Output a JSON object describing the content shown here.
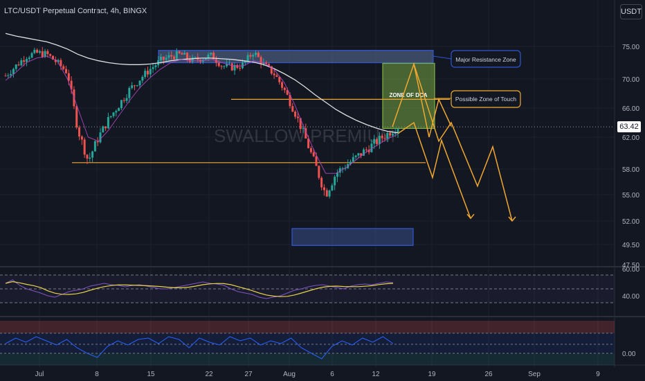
{
  "header": {
    "title": "LTC/USDT Perpetual Contract, 4h, BINGX",
    "unit": "USDT",
    "last_price": "63.42"
  },
  "watermark": "SWALLOW PREMIUM",
  "colors": {
    "background": "#131722",
    "up": "#26a69a",
    "down": "#ef5350",
    "accent": "#f0a830",
    "zone_border": "#3056d3",
    "zone_fill": "#4a5a7a",
    "dca_fill": "#8bc34a",
    "rsi_line": "#7e57c2",
    "rsi_ma": "#e8d44d",
    "osc_line": "#2962ff"
  },
  "annotations": {
    "major_resistance": "Major Resistance Zone",
    "possible_touch": "Possible Zone of Touch",
    "zone_dca": "ZONE OF DCA"
  },
  "chart_data": [
    {
      "type": "candlestick",
      "title": "LTC/USDT Perpetual Contract, 4h, BINGX",
      "y_ticks": [
        "75.00",
        "70.00",
        "66.00",
        "62.00",
        "58.00",
        "55.00",
        "52.00",
        "49.50",
        "47.50"
      ],
      "x_ticks": [
        "Jul",
        "8",
        "15",
        "22",
        "27",
        "Aug",
        "6",
        "12",
        "19",
        "26",
        "Sep",
        "9"
      ],
      "last_price": 63.42,
      "closes_path": [
        70.5,
        72.0,
        73.5,
        74.0,
        73.8,
        72.5,
        71.0,
        63.0,
        59.0,
        62.0,
        64.5,
        66.5,
        68.5,
        70.0,
        71.5,
        72.8,
        73.5,
        73.8,
        72.8,
        73.2,
        73.6,
        72.0,
        71.8,
        72.2,
        74.2,
        72.2,
        70.8,
        68.5,
        65.5,
        62.0,
        58.5,
        55.0,
        57.5,
        58.5,
        59.5,
        60.5,
        61.5,
        62.5,
        63.42
      ],
      "ema_fast": [
        69.8,
        71.0,
        72.5,
        73.2,
        73.5,
        72.8,
        70.0,
        66.0,
        62.0,
        61.5,
        63.0,
        65.0,
        67.0,
        68.8,
        70.2,
        71.5,
        72.5,
        73.0,
        72.8,
        72.8,
        73.0,
        72.5,
        72.0,
        72.0,
        72.8,
        72.5,
        71.5,
        69.5,
        66.5,
        63.0,
        60.0,
        57.5,
        57.5,
        58.2,
        59.2,
        60.2,
        61.0,
        61.8,
        62.4
      ],
      "ema_slow": [
        77.0,
        76.6,
        76.3,
        76.0,
        75.7,
        75.2,
        74.6,
        73.8,
        73.2,
        72.8,
        72.5,
        72.3,
        72.2,
        72.2,
        72.3,
        72.5,
        72.8,
        73.0,
        73.1,
        73.2,
        73.2,
        73.1,
        73.0,
        72.8,
        72.6,
        72.2,
        71.6,
        70.8,
        69.9,
        68.9,
        67.8,
        66.8,
        65.8,
        65.0,
        64.3,
        63.7,
        63.2,
        62.8,
        62.6
      ],
      "support_level": 58.8,
      "resistance_zone": [
        72.5,
        74.4
      ],
      "dca_zone": [
        63.2,
        72.4
      ],
      "touch_level": 67.2,
      "demand_zone": [
        49.4,
        51.2
      ],
      "projection_a": [
        63.42,
        72.3,
        61.5,
        67.2,
        56.3
      ],
      "projection_b": [
        63.42,
        69.8,
        57.5,
        55.8,
        52.2
      ],
      "projection_c": [
        62.2,
        64.5,
        56.0,
        60.6,
        52.4
      ]
    },
    {
      "type": "line",
      "title": "RSI",
      "y_ticks": [
        "60.00",
        "40.00"
      ],
      "levels": [
        70,
        50,
        30
      ],
      "values": [
        58,
        63,
        55,
        50,
        47,
        44,
        40,
        38,
        42,
        46,
        48,
        50,
        54,
        56,
        58,
        56,
        55,
        53,
        55,
        56,
        54,
        52,
        50,
        50,
        52,
        54,
        56,
        58,
        60,
        58,
        57,
        55,
        50,
        46,
        44,
        42,
        38,
        36,
        38,
        40,
        44,
        48,
        50,
        53,
        55,
        56,
        54,
        52,
        50,
        54,
        56,
        57,
        56,
        58,
        60,
        59
      ]
    },
    {
      "type": "line",
      "title": "Oscillator",
      "y_ticks": [
        "0.00"
      ],
      "values": [
        0.35,
        0.55,
        0.4,
        0.6,
        0.45,
        0.3,
        0.5,
        0.2,
        0.0,
        -0.15,
        0.25,
        0.45,
        0.3,
        0.5,
        0.55,
        0.35,
        0.6,
        0.5,
        0.2,
        0.55,
        0.4,
        0.3,
        0.6,
        0.45,
        0.55,
        0.3,
        0.45,
        0.35,
        0.55,
        0.2,
        0.0,
        -0.2,
        0.25,
        0.45,
        0.3,
        0.55,
        0.4,
        0.6,
        0.35
      ]
    }
  ]
}
